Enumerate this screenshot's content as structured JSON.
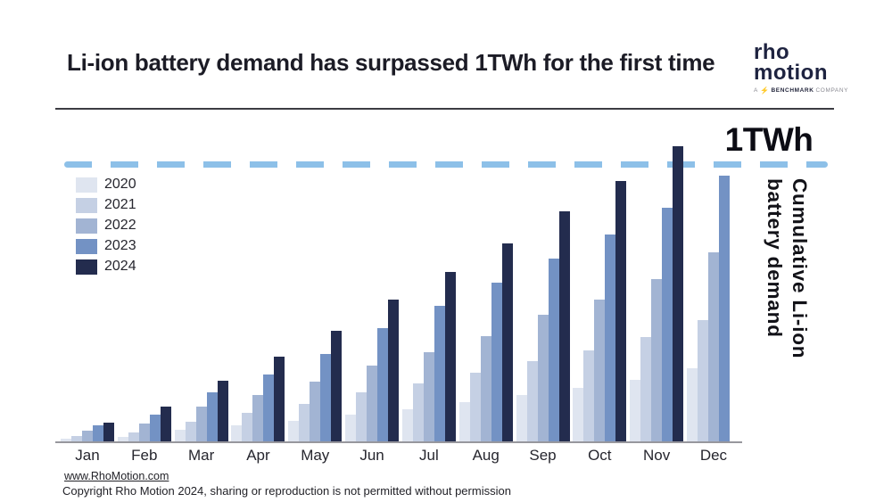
{
  "header": {
    "title": "Li-ion battery demand has surpassed 1TWh for the first time",
    "logo": {
      "line1": "rho",
      "line2": "motion",
      "tagline_prefix": "A",
      "tagline_bold": "BENCHMARK",
      "tagline_suffix": "COMPANY",
      "mark_icon": "benchmark-bolt-icon",
      "mark_color": "#f2a41f",
      "text_color": "#1e2340"
    }
  },
  "chart_data": {
    "type": "bar",
    "title": "Cumulative Li-ion battery demand",
    "unit": "TWh",
    "categories": [
      "Jan",
      "Feb",
      "Mar",
      "Apr",
      "May",
      "Jun",
      "Jul",
      "Aug",
      "Sep",
      "Oct",
      "Nov",
      "Dec"
    ],
    "series": [
      {
        "name": "2020",
        "color": "#dfe5f0",
        "values": [
          0.016,
          0.021,
          0.048,
          0.064,
          0.08,
          0.102,
          0.123,
          0.148,
          0.173,
          0.198,
          0.228,
          0.268
        ]
      },
      {
        "name": "2021",
        "color": "#c5d0e4",
        "values": [
          0.027,
          0.037,
          0.077,
          0.109,
          0.141,
          0.182,
          0.214,
          0.252,
          0.294,
          0.334,
          0.382,
          0.441
        ]
      },
      {
        "name": "2022",
        "color": "#a2b4d3",
        "values": [
          0.046,
          0.072,
          0.13,
          0.173,
          0.221,
          0.278,
          0.326,
          0.385,
          0.462,
          0.517,
          0.59,
          0.685
        ]
      },
      {
        "name": "2023",
        "color": "#7392c4",
        "values": [
          0.064,
          0.104,
          0.182,
          0.248,
          0.321,
          0.412,
          0.494,
          0.578,
          0.663,
          0.749,
          0.845,
          0.962
        ]
      },
      {
        "name": "2024",
        "color": "#232c4e",
        "values": [
          0.075,
          0.13,
          0.225,
          0.31,
          0.403,
          0.517,
          0.615,
          0.717,
          0.832,
          0.943,
          1.066,
          null
        ]
      }
    ],
    "threshold": {
      "value": 1,
      "label": "1TWh",
      "color": "#8dc0e8"
    },
    "ylabel": "Cumulative Li-ion\nbattery demand",
    "ylim": [
      0,
      1.14
    ],
    "grid": false,
    "legend_position": "top-left",
    "axis_color": "#97979d"
  },
  "footer": {
    "link": "www.RhoMotion.com",
    "copyright": "Copyright Rho Motion 2024, sharing or reproduction is not permitted without permission"
  }
}
